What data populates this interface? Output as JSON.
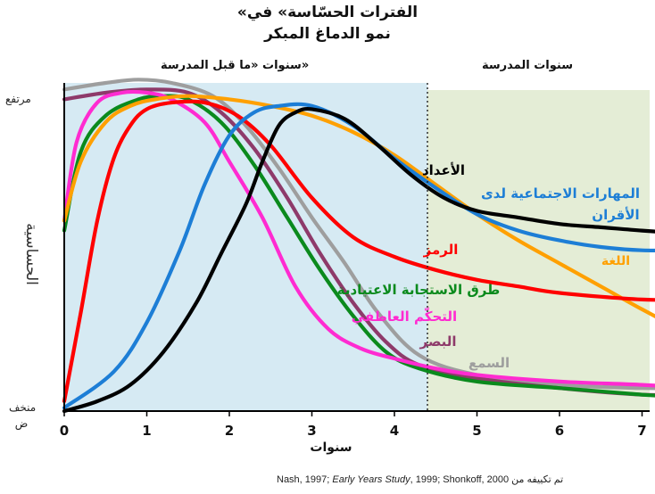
{
  "chart_data": {
    "type": "line",
    "title": [
      "«الفترات الحسّاسة» في",
      "نمو الدماغ المبكر"
    ],
    "xlabel": "سنوات",
    "ylabel": "الحساسية",
    "y_top_label": "مرتفع",
    "y_bottom_label": "منخف ض",
    "xlim": [
      0,
      7.6
    ],
    "ylim": [
      0,
      1
    ],
    "xticks": [
      0,
      1,
      2,
      3,
      4,
      5,
      6,
      7
    ],
    "periods": [
      {
        "label": "سنوات «ما قبل المدرسة»",
        "from": 0,
        "to": 4.4,
        "color": "#d6eaf3"
      },
      {
        "label": "سنوات المدرسة",
        "from": 4.4,
        "to": 7.6,
        "color": "#e4edd6"
      }
    ],
    "boundary_x": 4.4,
    "series": [
      {
        "name": "السمع",
        "color": "#9e9e9e",
        "x": [
          0,
          0.5,
          0.9,
          1.3,
          1.8,
          2.2,
          2.6,
          3.0,
          3.4,
          3.8,
          4.3,
          5.0,
          6.0,
          7.0,
          7.6
        ],
        "y": [
          0.98,
          1.0,
          1.01,
          1.0,
          0.96,
          0.87,
          0.74,
          0.59,
          0.45,
          0.3,
          0.17,
          0.11,
          0.08,
          0.07,
          0.07
        ]
      },
      {
        "name": "البصر",
        "color": "#8e3a6a",
        "x": [
          0,
          0.5,
          1.0,
          1.5,
          1.9,
          2.3,
          2.7,
          3.1,
          3.5,
          3.9,
          4.3,
          5.0,
          6.0,
          7.0,
          7.6
        ],
        "y": [
          0.95,
          0.97,
          0.98,
          0.97,
          0.91,
          0.8,
          0.65,
          0.48,
          0.33,
          0.21,
          0.14,
          0.1,
          0.07,
          0.05,
          0.05
        ]
      },
      {
        "name": "طرق الاستجابة الاعتيادية",
        "color": "#0b8a1d",
        "x": [
          0,
          0.2,
          0.5,
          0.9,
          1.2,
          1.5,
          1.9,
          2.3,
          2.7,
          3.1,
          3.5,
          3.9,
          4.3,
          5.0,
          6.0,
          7.0,
          7.6
        ],
        "y": [
          0.55,
          0.79,
          0.9,
          0.95,
          0.96,
          0.95,
          0.88,
          0.75,
          0.59,
          0.43,
          0.29,
          0.18,
          0.13,
          0.09,
          0.07,
          0.05,
          0.04
        ]
      },
      {
        "name": "التحكّم العاطفي",
        "color": "#ff2bd1",
        "x": [
          0,
          0.15,
          0.4,
          0.7,
          1.0,
          1.3,
          1.7,
          2.0,
          2.4,
          2.8,
          3.2,
          3.6,
          4.0,
          4.5,
          5.0,
          6.0,
          7.0,
          7.6
        ],
        "y": [
          0.58,
          0.82,
          0.94,
          0.97,
          0.97,
          0.95,
          0.88,
          0.76,
          0.59,
          0.38,
          0.25,
          0.19,
          0.16,
          0.13,
          0.11,
          0.09,
          0.08,
          0.07
        ]
      },
      {
        "name": "اللغة",
        "color": "#ffa000",
        "x": [
          0,
          0.2,
          0.5,
          0.8,
          1.1,
          1.5,
          2.0,
          2.5,
          3.0,
          3.5,
          4.0,
          4.5,
          5.0,
          5.5,
          6.0,
          6.5,
          7.0,
          7.6
        ],
        "y": [
          0.58,
          0.76,
          0.88,
          0.93,
          0.95,
          0.96,
          0.95,
          0.93,
          0.9,
          0.85,
          0.78,
          0.69,
          0.6,
          0.52,
          0.45,
          0.38,
          0.31,
          0.23
        ]
      },
      {
        "name": "الرمز",
        "color": "#ff0000",
        "x": [
          0,
          0.2,
          0.4,
          0.6,
          0.8,
          1.0,
          1.3,
          1.7,
          2.1,
          2.5,
          3.0,
          3.5,
          4.0,
          4.5,
          5.0,
          5.5,
          6.0,
          7.0,
          7.6
        ],
        "y": [
          0.03,
          0.3,
          0.58,
          0.77,
          0.87,
          0.92,
          0.94,
          0.94,
          0.9,
          0.81,
          0.65,
          0.53,
          0.47,
          0.43,
          0.4,
          0.38,
          0.36,
          0.34,
          0.34
        ]
      },
      {
        "name": "المهارات الاجتماعية لدى الأقران",
        "color": "#1d7ed6",
        "x": [
          0,
          0.6,
          1.0,
          1.4,
          1.7,
          2.0,
          2.3,
          2.6,
          3.0,
          3.5,
          4.0,
          4.5,
          5.0,
          5.5,
          6.0,
          6.5,
          7.0,
          7.6
        ],
        "y": [
          0.01,
          0.12,
          0.27,
          0.49,
          0.69,
          0.84,
          0.91,
          0.93,
          0.93,
          0.87,
          0.77,
          0.68,
          0.6,
          0.55,
          0.52,
          0.5,
          0.49,
          0.49
        ]
      },
      {
        "name": "الأعداد",
        "color": "#000000",
        "x": [
          0,
          0.4,
          0.8,
          1.2,
          1.6,
          1.9,
          2.2,
          2.4,
          2.6,
          2.8,
          3.0,
          3.4,
          3.8,
          4.2,
          4.6,
          5.0,
          5.5,
          6.0,
          6.5,
          7.0,
          7.6
        ],
        "y": [
          0.0,
          0.03,
          0.08,
          0.18,
          0.33,
          0.48,
          0.63,
          0.76,
          0.87,
          0.91,
          0.92,
          0.89,
          0.81,
          0.72,
          0.65,
          0.61,
          0.59,
          0.57,
          0.56,
          0.55,
          0.54
        ]
      }
    ],
    "annotations": [
      {
        "text": "الأعداد",
        "series": "الأعداد"
      },
      {
        "text": "المهارات الاجتماعية لدى",
        "series": "المهارات الاجتماعية لدى الأقران"
      },
      {
        "text": "الأقران",
        "series": "المهارات الاجتماعية لدى الأقران"
      },
      {
        "text": "اللغة",
        "series": "اللغة"
      },
      {
        "text": "الرمز",
        "series": "الرمز"
      },
      {
        "text": "طرق الاستجابة الاعتيادية",
        "series": "طرق الاستجابة الاعتيادية"
      },
      {
        "text": "التحكّم العاطفي",
        "series": "التحكّم العاطفي"
      },
      {
        "text": "البصر",
        "series": "البصر"
      },
      {
        "text": "السمع",
        "series": "السمع"
      }
    ],
    "grid": false
  },
  "source": {
    "prefix": "Nash, 1997; ",
    "italic": "Early Years Study",
    "suffix": ", 1999; Shonkoff, 2000",
    "note": "تم تكييفه من"
  }
}
